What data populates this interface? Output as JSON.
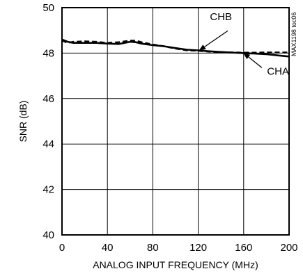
{
  "chart_data": {
    "type": "line",
    "xlabel": "ANALOG INPUT FREQUENCY (MHz)",
    "ylabel": "SNR (dB)",
    "xlim": [
      0,
      200
    ],
    "ylim": [
      40,
      50
    ],
    "xticks": [
      0,
      40,
      80,
      120,
      160,
      200
    ],
    "yticks": [
      40,
      42,
      44,
      46,
      48,
      50
    ],
    "grid": true,
    "series": [
      {
        "name": "CHA",
        "style": "solid",
        "color": "#000000",
        "x": [
          0,
          5,
          10,
          20,
          30,
          40,
          50,
          60,
          65,
          70,
          80,
          90,
          100,
          110,
          120,
          130,
          140,
          150,
          160,
          170,
          180,
          190,
          200
        ],
        "y": [
          48.6,
          48.5,
          48.45,
          48.45,
          48.45,
          48.42,
          48.4,
          48.5,
          48.48,
          48.42,
          48.35,
          48.3,
          48.22,
          48.15,
          48.12,
          48.08,
          48.05,
          48.02,
          48.0,
          47.98,
          47.95,
          47.9,
          47.85
        ]
      },
      {
        "name": "CHB",
        "style": "dashed",
        "color": "#000000",
        "x": [
          0,
          5,
          10,
          20,
          30,
          40,
          50,
          60,
          65,
          70,
          80,
          90,
          100,
          110,
          120,
          130,
          140,
          150,
          160,
          170,
          180,
          190,
          200
        ],
        "y": [
          48.55,
          48.45,
          48.5,
          48.52,
          48.5,
          48.45,
          48.48,
          48.55,
          48.55,
          48.48,
          48.38,
          48.3,
          48.2,
          48.12,
          48.1,
          48.06,
          48.04,
          48.03,
          48.02,
          48.02,
          48.03,
          48.03,
          48.03
        ]
      }
    ],
    "annotations": [
      {
        "label": "CHB",
        "text_at": [
          140,
          49.45
        ],
        "arrow_from": [
          146,
          48.98
        ],
        "arrow_to": [
          121,
          48.12
        ]
      },
      {
        "label": "CHA",
        "text_at": [
          200,
          47.05
        ],
        "arrow_from": [
          176,
          47.36
        ],
        "arrow_to": [
          160,
          48.0
        ]
      }
    ],
    "watermark": "MAX1198 toc06"
  }
}
